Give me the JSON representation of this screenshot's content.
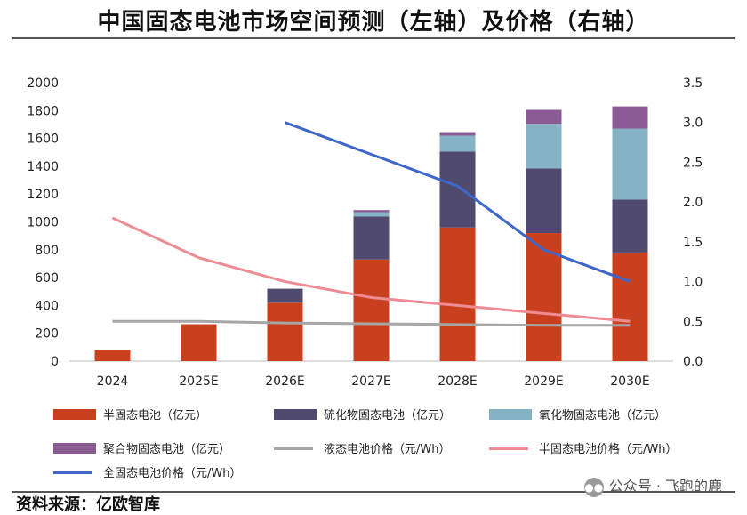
{
  "title": "中国固态电池市场空间预测（左轴）及价格（右轴）",
  "source": "资料来源：亿欧智库",
  "watermark": "公众号 · 飞跑的鹿",
  "colors": {
    "semi_solid": "#C9401F",
    "sulfide": "#4F4A6E",
    "oxide": "#86B3C4",
    "polymer": "#8A5A94",
    "liquid_price": "#A6A6A6",
    "semi_price": "#EE8C95",
    "all_solid_price": "#3F67C9"
  },
  "chart_data": {
    "type": "bar",
    "stacked": true,
    "categories": [
      "2024",
      "2025E",
      "2026E",
      "2027E",
      "2028E",
      "2029E",
      "2030E"
    ],
    "series": [
      {
        "name": "半固态电池（亿元）",
        "axis": "left",
        "values": [
          80,
          265,
          420,
          730,
          960,
          920,
          780
        ]
      },
      {
        "name": "硫化物固态电池（亿元）",
        "axis": "left",
        "values": [
          0,
          0,
          100,
          310,
          545,
          465,
          380
        ]
      },
      {
        "name": "氧化物固态电池（亿元）",
        "axis": "left",
        "values": [
          0,
          0,
          0,
          30,
          115,
          320,
          510
        ]
      },
      {
        "name": "聚合物固态电池（亿元）",
        "axis": "left",
        "values": [
          0,
          0,
          0,
          15,
          25,
          100,
          160
        ]
      }
    ],
    "lines": [
      {
        "name": "液态电池价格（元/Wh）",
        "axis": "right",
        "values": [
          0.5,
          0.5,
          0.48,
          0.47,
          0.46,
          0.45,
          0.45
        ]
      },
      {
        "name": "半固态电池价格（元/Wh）",
        "axis": "right",
        "values": [
          1.8,
          1.3,
          1.0,
          0.8,
          0.7,
          0.6,
          0.5
        ]
      },
      {
        "name": "全固态电池价格（元/Wh）",
        "axis": "right",
        "values": [
          null,
          null,
          3.0,
          2.6,
          2.2,
          1.4,
          1.0
        ]
      }
    ],
    "y_left": {
      "min": 0,
      "max": 2000,
      "ticks": [
        "0",
        "200",
        "400",
        "600",
        "800",
        "1000",
        "1200",
        "1400",
        "1600",
        "1800",
        "2000"
      ]
    },
    "y_right": {
      "min": 0,
      "max": 3.5,
      "ticks": [
        "0.0",
        "0.5",
        "1.0",
        "1.5",
        "2.0",
        "2.5",
        "3.0",
        "3.5"
      ]
    },
    "grid": false,
    "legend_position": "bottom"
  }
}
